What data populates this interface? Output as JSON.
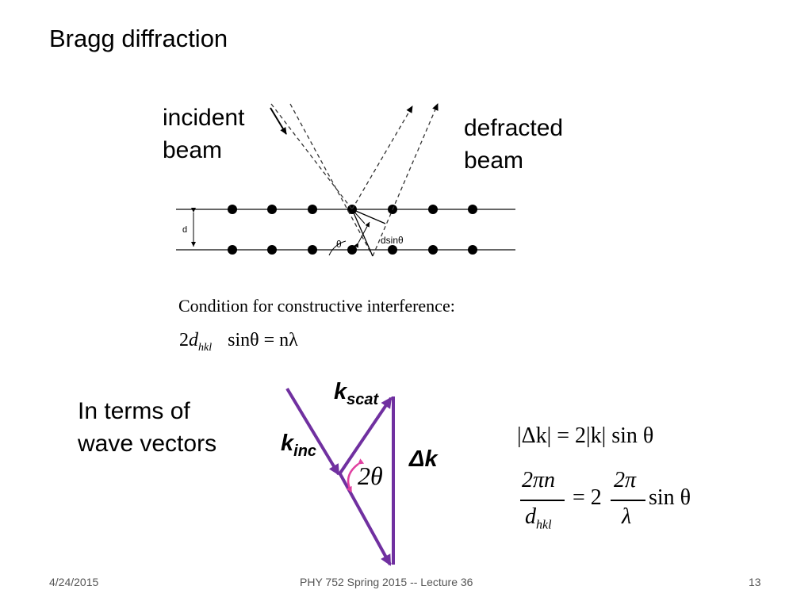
{
  "slide": {
    "title": "Bragg diffraction",
    "incident_label": [
      "incident",
      "beam"
    ],
    "defracted_label": [
      "defracted",
      "beam"
    ],
    "condition_text": "Condition for constructive interference:",
    "wave_vectors_label": [
      "In terms of",
      "wave vectors"
    ]
  },
  "diagram": {
    "d_label": "d",
    "theta_label": "θ",
    "dsin_label": "dsinθ",
    "k_scat_main": "k",
    "k_scat_sub": "scat",
    "k_inc_main": "k",
    "k_inc_sub": "inc",
    "delta_k": "Δk",
    "two_theta": "2θ"
  },
  "equations": {
    "bragg": {
      "prefix": "2",
      "d": "d",
      "sub": "hkl",
      "rest": "sinθ = nλ"
    },
    "eq1": "|Δk| = 2|k| sin θ",
    "eq2": {
      "num_left": "2πn",
      "den_left_d": "d",
      "den_left_sub": "hkl",
      "eq": "= 2",
      "num_right": "2π",
      "den_right": "λ",
      "tail": "sin θ"
    }
  },
  "colors": {
    "arrow": "#7030a0",
    "angle": "#e040a0"
  },
  "footer": {
    "date": "4/24/2015",
    "course": "PHY 752  Spring 2015 -- Lecture 36",
    "page": "13"
  }
}
